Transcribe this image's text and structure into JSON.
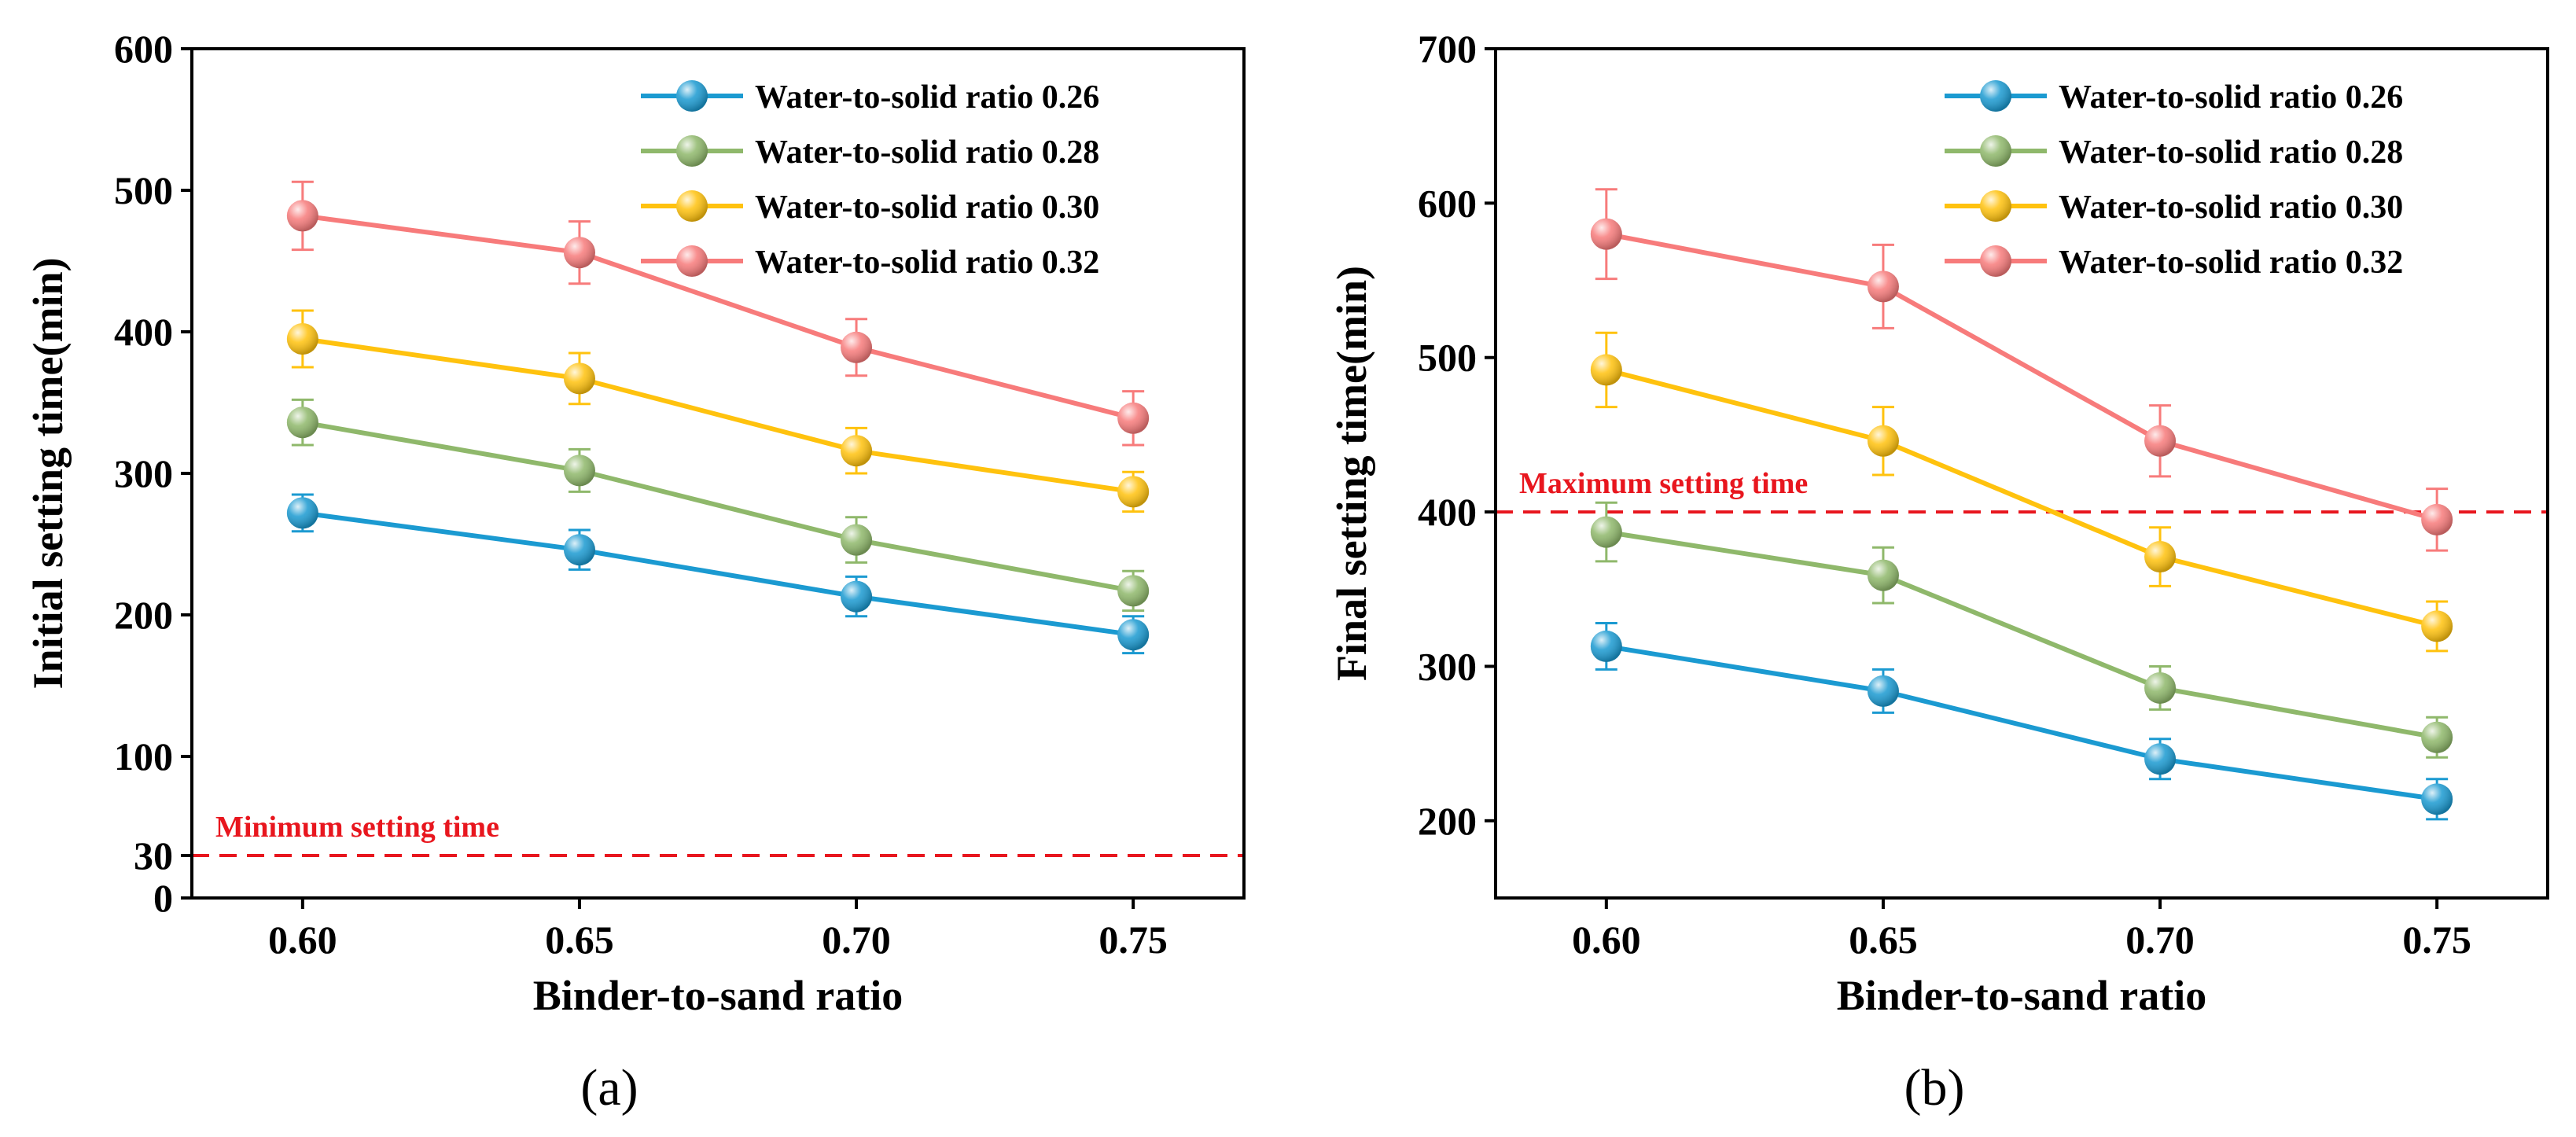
{
  "chart_data": [
    {
      "type": "line",
      "panel_label": "(a)",
      "xlabel": "Binder-to-sand ratio",
      "ylabel": "Initial setting time(min)",
      "x": [
        0.6,
        0.65,
        0.7,
        0.75
      ],
      "x_tick_labels": [
        "0.60",
        "0.65",
        "0.70",
        "0.75"
      ],
      "xlim": [
        0.58,
        0.77
      ],
      "ylim": [
        0,
        600
      ],
      "y_ticks": [
        0,
        100,
        200,
        300,
        400,
        500,
        600
      ],
      "y_tick_labels": [
        "0",
        "100",
        "200",
        "300",
        "400",
        "500",
        "600"
      ],
      "grid": false,
      "legend_position": "top-right",
      "series": [
        {
          "name": "Water-to-solid ratio 0.26",
          "color": "#1b9ad1",
          "values": [
            272,
            246,
            213,
            186
          ],
          "errors": [
            13,
            14,
            14,
            13
          ]
        },
        {
          "name": "Water-to-solid ratio 0.28",
          "color": "#8fb86b",
          "values": [
            336,
            302,
            253,
            217
          ],
          "errors": [
            16,
            15,
            16,
            14
          ]
        },
        {
          "name": "Water-to-solid ratio 0.30",
          "color": "#ffc20e",
          "values": [
            395,
            367,
            316,
            287
          ],
          "errors": [
            20,
            18,
            16,
            14
          ]
        },
        {
          "name": "Water-to-solid ratio 0.32",
          "color": "#f77b7b",
          "values": [
            482,
            456,
            389,
            339
          ],
          "errors": [
            24,
            22,
            20,
            19
          ]
        }
      ],
      "reference_line": {
        "value": 30,
        "label": "Minimum setting time",
        "tick_label": "30",
        "color": "#e8161e"
      }
    },
    {
      "type": "line",
      "panel_label": "(b)",
      "xlabel": "Binder-to-sand ratio",
      "ylabel": "Final setting time(min)",
      "x": [
        0.6,
        0.65,
        0.7,
        0.75
      ],
      "x_tick_labels": [
        "0.60",
        "0.65",
        "0.70",
        "0.75"
      ],
      "xlim": [
        0.58,
        0.77
      ],
      "ylim": [
        150,
        700
      ],
      "y_ticks": [
        200,
        300,
        400,
        500,
        600,
        700
      ],
      "y_tick_labels": [
        "200",
        "300",
        "400",
        "500",
        "600",
        "700"
      ],
      "grid": false,
      "legend_position": "top-right",
      "series": [
        {
          "name": "Water-to-solid ratio 0.26",
          "color": "#1b9ad1",
          "values": [
            313,
            284,
            240,
            214
          ],
          "errors": [
            15,
            14,
            13,
            13
          ]
        },
        {
          "name": "Water-to-solid ratio 0.28",
          "color": "#8fb86b",
          "values": [
            387,
            359,
            286,
            254
          ],
          "errors": [
            19,
            18,
            14,
            13
          ]
        },
        {
          "name": "Water-to-solid ratio 0.30",
          "color": "#ffc20e",
          "values": [
            492,
            446,
            371,
            326
          ],
          "errors": [
            24,
            22,
            19,
            16
          ]
        },
        {
          "name": "Water-to-solid ratio 0.32",
          "color": "#f77b7b",
          "values": [
            580,
            546,
            446,
            395
          ],
          "errors": [
            29,
            27,
            23,
            20
          ]
        }
      ],
      "reference_line": {
        "value": 400,
        "label": "Maximum setting time",
        "color": "#e8161e"
      }
    }
  ]
}
